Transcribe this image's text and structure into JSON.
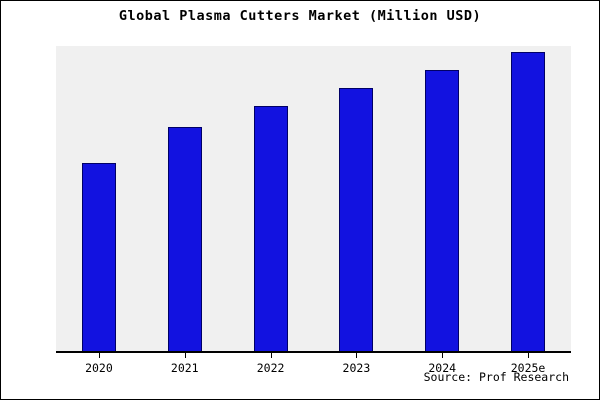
{
  "chart_data": {
    "type": "bar",
    "title": "Global Plasma Cutters Market (Million USD)",
    "categories": [
      "2020",
      "2021",
      "2022",
      "2023",
      "2024",
      "2025e"
    ],
    "values": [
      63,
      75,
      82,
      88,
      94,
      100
    ],
    "xlabel": "",
    "ylabel": "",
    "ylim": [
      0,
      102
    ],
    "grid": false,
    "legend": null,
    "bar_color": "#1212e0",
    "bar_edge_color": "#000066",
    "plot_bg": "#f0f0f0",
    "note": "No y-axis scale shown; values are relative heights with tallest bar = 100"
  },
  "source": {
    "label": "Source: Prof Research"
  }
}
